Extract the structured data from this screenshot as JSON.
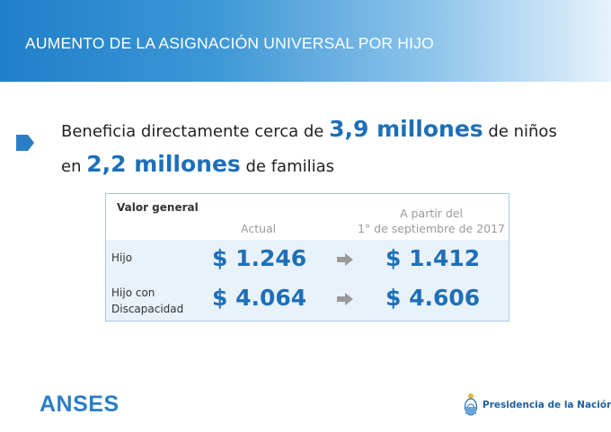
{
  "header": {
    "title": "AUMENTO DE LA ASIGNACIÓN UNIVERSAL POR HIJO"
  },
  "headline": {
    "line1_pre": "Beneficia directamente cerca de ",
    "line1_highlight": "3,9 millones",
    "line1_post": " de niños",
    "line2_pre": "en ",
    "line2_highlight": "2,2 millones",
    "line2_post": " de familias"
  },
  "table": {
    "corner_label": "Valor general",
    "col_actual": "Actual",
    "col_new_line1": "A partir del",
    "col_new_line2": "1° de septiembre de 2017",
    "rows": [
      {
        "label": "Hijo",
        "actual": "$ 1.246",
        "new": "$ 1.412"
      },
      {
        "label_line1": "Hijo con",
        "label_line2": "Discapacidad",
        "actual": "$ 4.064",
        "new": "$ 4.606"
      }
    ]
  },
  "footer": {
    "left_logo": "ANSES",
    "right_logo": "Presidencia de la Nación"
  },
  "colors": {
    "accent": "#1d6fb8",
    "header_start": "#1f7fc8",
    "table_body": "#e9f1fa",
    "arrow": "#9a9a9a"
  },
  "icons": {
    "bullet": "blue-chevron-bullet-icon",
    "arrow": "right-arrow-icon",
    "emblem": "argentina-coat-of-arms-icon"
  }
}
